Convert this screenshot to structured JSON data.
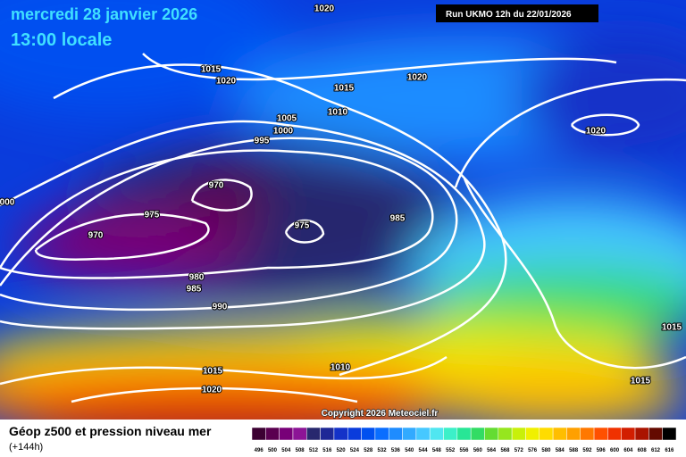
{
  "header": {
    "date": "mercredi 28 janvier 2026",
    "time": "13:00 locale",
    "run": "Run UKMO 12h du 22/01/2026"
  },
  "isobar_labels": [
    1020,
    1015,
    1020,
    1015,
    1020,
    1010,
    1005,
    1000,
    995,
    1020,
    970,
    975,
    985,
    975,
    970,
    "000",
    980,
    985,
    990,
    1015,
    1015,
    1010,
    1020,
    1015
  ],
  "copyright": "Copyright 2026 Meteociel.fr",
  "footer": {
    "title": "Géop z500 et pression niveau mer",
    "lead": "(+144h)"
  },
  "legend": {
    "values": [
      496,
      500,
      504,
      508,
      512,
      516,
      520,
      524,
      528,
      532,
      536,
      540,
      544,
      548,
      552,
      556,
      560,
      564,
      568,
      572,
      576,
      580,
      584,
      588,
      592,
      596,
      600,
      604,
      608,
      612,
      616
    ],
    "colors": [
      "#3c0032",
      "#5a0050",
      "#780078",
      "#8c1496",
      "#28286e",
      "#1e2896",
      "#1432c8",
      "#0a3cdc",
      "#0050f0",
      "#0a6eff",
      "#1e8cff",
      "#32aaff",
      "#46c8ff",
      "#50e6f0",
      "#3cf0c8",
      "#28e696",
      "#32dc64",
      "#64dc32",
      "#96e61e",
      "#c8f00a",
      "#f0f000",
      "#ffdc00",
      "#ffbe00",
      "#ffa000",
      "#ff7800",
      "#ff5000",
      "#f03200",
      "#d21e00",
      "#aa1400",
      "#640a00",
      "#000000"
    ]
  }
}
